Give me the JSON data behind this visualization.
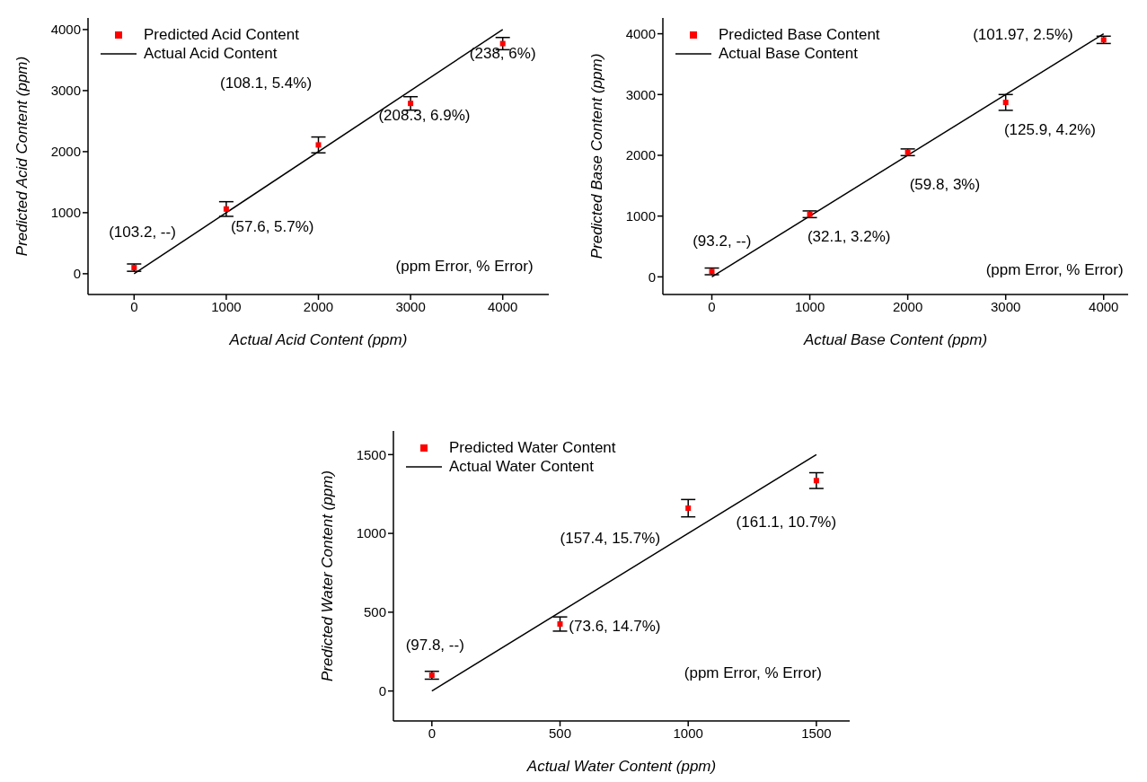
{
  "chart_data": [
    {
      "type": "scatter",
      "xlabel": "Actual Acid Content (ppm)",
      "ylabel": "Predicted Acid Content (ppm)",
      "xlim": [
        -500,
        4500
      ],
      "ylim": [
        -340,
        4190
      ],
      "xticks": [
        0,
        1000,
        2000,
        3000,
        4000
      ],
      "yticks": [
        0,
        1000,
        2000,
        3000,
        4000
      ],
      "legend": "top left",
      "annotations": [
        "(238, 6%)",
        "(108.1, 5.4%)",
        "(208.3, 6.9%)",
        "(57.6, 5.7%)",
        "(103.2, --)",
        "(ppm Error, % Error)"
      ],
      "series": [
        {
          "name": "Predicted Acid Content",
          "marker": "square",
          "color": "#ff0000",
          "x": [
            0,
            1000,
            2000,
            3000,
            4000
          ],
          "values": [
            100,
            1060,
            2110,
            2790,
            3770
          ],
          "errors": [
            60,
            120,
            130,
            110,
            100
          ]
        },
        {
          "name": "Actual Acid Content",
          "type": "line",
          "color": "#000000",
          "x": [
            0,
            4000
          ],
          "values": [
            0,
            4000
          ]
        }
      ]
    },
    {
      "type": "scatter",
      "xlabel": "Actual Base Content (ppm)",
      "ylabel": "Predicted Base Content (ppm)",
      "xlim": [
        -500,
        4250
      ],
      "ylim": [
        -290,
        4260
      ],
      "xticks": [
        0,
        1000,
        2000,
        3000,
        4000
      ],
      "yticks": [
        0,
        1000,
        2000,
        3000,
        4000
      ],
      "legend": "top left",
      "annotations": [
        "(101.97, 2.5%)",
        "(125.9, 4.2%)",
        "(59.8, 3%)",
        "(32.1, 3.2%)",
        "(93.2, --)",
        "(ppm Error, % Error)"
      ],
      "series": [
        {
          "name": "Predicted Base Content",
          "marker": "square",
          "color": "#ff0000",
          "x": [
            0,
            1000,
            2000,
            3000,
            4000
          ],
          "values": [
            90,
            1030,
            2050,
            2870,
            3900
          ],
          "errors": [
            55,
            55,
            55,
            130,
            60
          ]
        },
        {
          "name": "Actual Base Content",
          "type": "line",
          "color": "#000000",
          "x": [
            0,
            4000
          ],
          "values": [
            0,
            4000
          ]
        }
      ]
    },
    {
      "type": "scatter",
      "xlabel": "Actual Water Content (ppm)",
      "ylabel": "Predicted Water Content (ppm)",
      "xlim": [
        -150,
        1630
      ],
      "ylim": [
        -190,
        1650
      ],
      "xticks": [
        0,
        500,
        1000,
        1500
      ],
      "yticks": [
        0,
        500,
        1000,
        1500
      ],
      "legend": "top left",
      "annotations": [
        "(157.4, 15.7%)",
        "(161.1, 10.7%)",
        "(73.6, 14.7%)",
        "(97.8, --)",
        "(ppm Error, % Error)"
      ],
      "series": [
        {
          "name": "Predicted Water Content",
          "marker": "square",
          "color": "#ff0000",
          "x": [
            0,
            500,
            1000,
            1500
          ],
          "values": [
            100,
            425,
            1160,
            1335
          ],
          "errors": [
            25,
            45,
            55,
            50
          ]
        },
        {
          "name": "Actual Water Content",
          "type": "line",
          "color": "#000000",
          "x": [
            0,
            1500
          ],
          "values": [
            0,
            1500
          ]
        }
      ]
    }
  ]
}
